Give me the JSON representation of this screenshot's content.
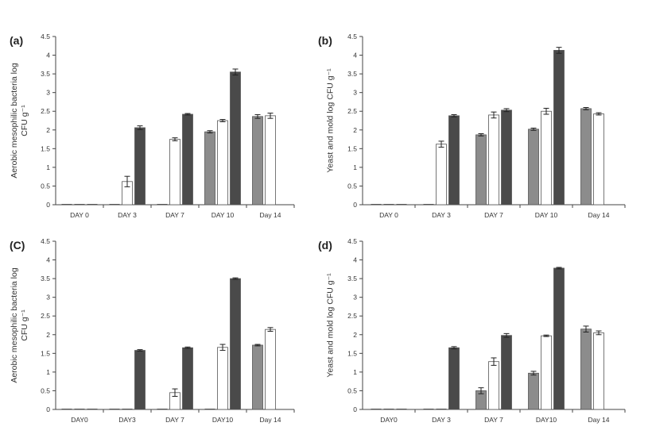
{
  "colors": {
    "s1": "#8c8c8c",
    "s2": "#ffffff",
    "s3": "#4a4a4a",
    "axis": "#444444",
    "err": "#222222"
  },
  "chart_data": [
    {
      "type": "bar",
      "panel": "(a)",
      "ylabel": "Aerobic mesophilic bacteria log CFU g⁻¹",
      "ylim": [
        0,
        4.5
      ],
      "yticks": [
        "0",
        "0.5",
        "1",
        "1.5",
        "2",
        "2.5",
        "3",
        "3.5",
        "4",
        "4.5"
      ],
      "categories": [
        "DAY 0",
        "DAY 3",
        "DAY 7",
        "DAY 10",
        "Day 14"
      ],
      "series": [
        {
          "values": [
            0,
            0,
            0,
            1.95,
            2.36
          ],
          "errors": [
            0,
            0,
            0,
            0.03,
            0.05
          ]
        },
        {
          "values": [
            0,
            0.62,
            1.75,
            2.25,
            2.38
          ],
          "errors": [
            0,
            0.14,
            0.04,
            0.03,
            0.07
          ]
        },
        {
          "values": [
            0,
            2.06,
            2.42,
            3.55,
            null
          ],
          "errors": [
            0,
            0.05,
            0.02,
            0.08,
            0
          ]
        }
      ]
    },
    {
      "type": "bar",
      "panel": "(b)",
      "ylabel": "Yeast and mold log CFU g⁻¹",
      "ylim": [
        0,
        4.5
      ],
      "yticks": [
        "0",
        "0.5",
        "1",
        "1.5",
        "2",
        "2.5",
        "3",
        "3.5",
        "4",
        "4.5"
      ],
      "categories": [
        "DAY 0",
        "DAY 3",
        "DAY 7",
        "DAY 10",
        "Day 14"
      ],
      "series": [
        {
          "values": [
            0,
            0,
            1.87,
            2.02,
            2.57
          ],
          "errors": [
            0,
            0,
            0.03,
            0.03,
            0.03
          ]
        },
        {
          "values": [
            0,
            1.62,
            2.4,
            2.5,
            2.43
          ],
          "errors": [
            0,
            0.08,
            0.08,
            0.08,
            0.03
          ]
        },
        {
          "values": [
            0,
            2.38,
            2.53,
            4.13,
            null
          ],
          "errors": [
            0,
            0.03,
            0.04,
            0.08,
            0
          ]
        }
      ]
    },
    {
      "type": "bar",
      "panel": "(C)",
      "ylabel": "Aerobic mesophilic bacteria log CFU g⁻¹",
      "ylim": [
        0,
        4.5
      ],
      "yticks": [
        "0",
        "0.5",
        "1",
        "1.5",
        "2",
        "2.5",
        "3",
        "3.5",
        "4",
        "4.5"
      ],
      "categories": [
        "DAY0",
        "DAY3",
        "DAY 7",
        "DAY10",
        "Day 14"
      ],
      "series": [
        {
          "values": [
            0,
            0,
            0,
            0,
            1.72
          ],
          "errors": [
            0,
            0,
            0,
            0,
            0.02
          ]
        },
        {
          "values": [
            0,
            0,
            0.45,
            1.66,
            2.14
          ],
          "errors": [
            0,
            0,
            0.1,
            0.08,
            0.05
          ]
        },
        {
          "values": [
            0,
            1.58,
            1.65,
            3.5,
            null
          ],
          "errors": [
            0,
            0.02,
            0.02,
            0.02,
            0
          ]
        }
      ]
    },
    {
      "type": "bar",
      "panel": "(d)",
      "ylabel": "Yeast and mold log CFU g⁻¹",
      "ylim": [
        0,
        4.5
      ],
      "yticks": [
        "0",
        "0.5",
        "1",
        "1.5",
        "2",
        "2.5",
        "3",
        "3.5",
        "4",
        "4.5"
      ],
      "categories": [
        "DAY0",
        "DAY 3",
        "DAY 7",
        "DAY10",
        "Day 14"
      ],
      "series": [
        {
          "values": [
            0,
            0,
            0.5,
            0.97,
            2.15
          ],
          "errors": [
            0,
            0,
            0.08,
            0.05,
            0.08
          ]
        },
        {
          "values": [
            0,
            0,
            1.28,
            1.97,
            2.05
          ],
          "errors": [
            0,
            0,
            0.1,
            0.02,
            0.05
          ]
        },
        {
          "values": [
            0,
            1.65,
            1.98,
            3.78,
            null
          ],
          "errors": [
            0,
            0.03,
            0.05,
            0.02,
            0
          ]
        }
      ]
    }
  ]
}
